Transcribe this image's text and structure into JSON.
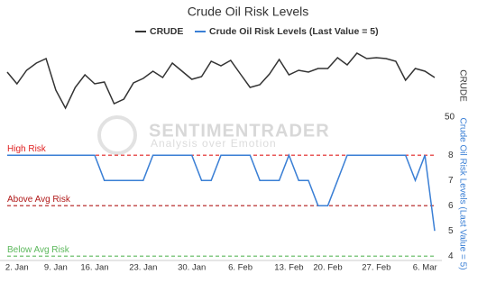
{
  "chart_data": {
    "type": "line",
    "title": "Crude Oil Risk Levels",
    "categories": [
      null,
      "2. Jan",
      null,
      null,
      null,
      "9. Jan",
      null,
      null,
      null,
      "16. Jan",
      null,
      null,
      null,
      null,
      "23. Jan",
      null,
      null,
      null,
      null,
      "30. Jan",
      null,
      null,
      null,
      null,
      "6. Feb",
      null,
      null,
      null,
      null,
      "13. Feb",
      null,
      null,
      null,
      "20. Feb",
      null,
      null,
      null,
      null,
      "27. Feb",
      null,
      null,
      null,
      null,
      "6. Mar",
      null
    ],
    "series": [
      {
        "name": "CRUDE",
        "color": "#333333",
        "axis": "y",
        "values": [
          60,
          57.4,
          60.4,
          62,
          63,
          56,
          52,
          56.6,
          59.4,
          57.4,
          57.8,
          53,
          54,
          57.6,
          58.6,
          60.2,
          58.8,
          62,
          60.2,
          58.4,
          59,
          62.4,
          61.4,
          62.6,
          59.6,
          56.6,
          57.2,
          59.6,
          62.8,
          59.4,
          60.4,
          60,
          60.8,
          60.8,
          63.2,
          61.6,
          64.2,
          63,
          63.2,
          63,
          62.4,
          58.2,
          60.8,
          60.2,
          58.8
        ]
      },
      {
        "name": "Crude Oil Risk Levels (Last Value = 5)",
        "color": "#3a7fd5",
        "axis": "y2",
        "values": [
          8,
          8,
          8,
          8,
          8,
          8,
          8,
          8,
          8,
          8,
          7,
          7,
          7,
          7,
          7,
          8,
          8,
          8,
          8,
          8,
          7,
          7,
          8,
          8,
          8,
          8,
          7,
          7,
          7,
          8,
          7,
          7,
          6,
          6,
          7,
          8,
          8,
          8,
          8,
          8,
          8,
          8,
          7,
          8,
          5
        ]
      }
    ],
    "ylim": [
      50,
      66
    ],
    "yticks": [
      50
    ],
    "y_label": "CRUDE",
    "y2lim": [
      3.9,
      9.15
    ],
    "y2ticks": [
      4,
      5,
      6,
      7,
      8
    ],
    "y2_label": "Crude Oil Risk Levels (Last Value = 5)",
    "annotations": [
      {
        "text": "High Risk",
        "value": 8,
        "color": "#e02020"
      },
      {
        "text": "Above Avg Risk",
        "value": 6,
        "color": "#b01818"
      },
      {
        "text": "Below Avg Risk",
        "value": 4,
        "color": "#5cb85c"
      }
    ],
    "watermark": [
      "SENTIMENTRADER",
      "Analysis over Emotion"
    ]
  }
}
